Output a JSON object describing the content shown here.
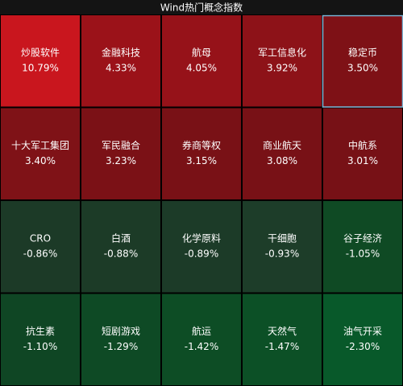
{
  "chart_data": {
    "type": "heatmap",
    "title": "Wind热门概念指数",
    "categories": [
      "炒股软件",
      "金融科技",
      "航母",
      "军工信息化",
      "稳定币",
      "十大军工集团",
      "军民融合",
      "券商等权",
      "商业航天",
      "中航系",
      "CRO",
      "白酒",
      "化学原料",
      "干细胞",
      "谷子经济",
      "抗生素",
      "短剧游戏",
      "航运",
      "天然气",
      "油气开采"
    ],
    "values": [
      10.79,
      4.33,
      4.05,
      3.92,
      3.5,
      3.4,
      3.23,
      3.15,
      3.08,
      3.01,
      -0.86,
      -0.88,
      -0.89,
      -0.93,
      -1.05,
      -1.1,
      -1.29,
      -1.42,
      -1.47,
      -2.3
    ],
    "value_labels": [
      "10.79%",
      "4.33%",
      "4.05%",
      "3.92%",
      "3.50%",
      "3.40%",
      "3.23%",
      "3.15%",
      "3.08%",
      "3.01%",
      "-0.86%",
      "-0.88%",
      "-0.89%",
      "-0.93%",
      "-1.05%",
      "-1.10%",
      "-1.29%",
      "-1.42%",
      "-1.47%",
      "-2.30%"
    ],
    "colors": [
      "#c9161e",
      "#9b1219",
      "#961219",
      "#8d1218",
      "#7e1116",
      "#7f1217",
      "#7b1116",
      "#791116",
      "#781116",
      "#771116",
      "#1c3a27",
      "#1c3b27",
      "#1c3b28",
      "#1d3d29",
      "#0f4a24",
      "#0f4624",
      "#0e4a25",
      "#0d4d25",
      "#0c5026",
      "#08592a"
    ]
  }
}
